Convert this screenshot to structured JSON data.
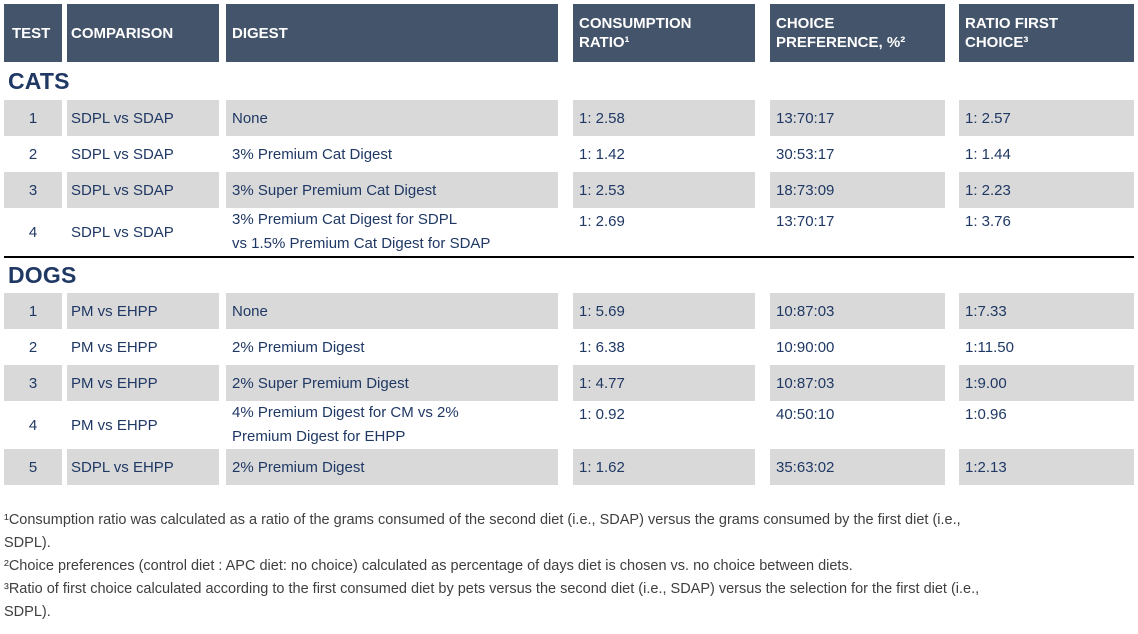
{
  "colors": {
    "header_bg": "#44546A",
    "row_alt_bg": "#D9D9D9",
    "navy": "#1F3864",
    "footnote": "#3F3F3F",
    "divider": "#000000"
  },
  "table": {
    "columns": {
      "test": "TEST",
      "comparison": "COMPARISON",
      "digest": "DIGEST",
      "consumption_ratio": "CONSUMPTION\nRATIO¹",
      "choice_preference": "CHOICE\nPREFERENCE, %²",
      "ratio_first_choice": "RATIO FIRST\nCHOICE³"
    },
    "sections": [
      {
        "title": "CATS",
        "rows": [
          {
            "test": "1",
            "comparison": "SDPL vs SDAP",
            "digest": "None",
            "consumption_ratio": "1: 2.58",
            "choice_preference": "13:70:17",
            "ratio_first_choice": "1: 2.57"
          },
          {
            "test": "2",
            "comparison": "SDPL vs SDAP",
            "digest": "3% Premium Cat Digest",
            "consumption_ratio": "1: 1.42",
            "choice_preference": "30:53:17",
            "ratio_first_choice": "1: 1.44"
          },
          {
            "test": "3",
            "comparison": "SDPL vs SDAP",
            "digest": "3% Super Premium Cat Digest",
            "consumption_ratio": "1: 2.53",
            "choice_preference": "18:73:09",
            "ratio_first_choice": "1: 2.23"
          },
          {
            "test": "4",
            "comparison": "SDPL vs SDAP",
            "digest": "3% Premium Cat Digest for SDPL\nvs 1.5% Premium Cat Digest for SDAP",
            "consumption_ratio": "1: 2.69",
            "choice_preference": "13:70:17",
            "ratio_first_choice": "1: 3.76"
          }
        ]
      },
      {
        "title": "DOGS",
        "rows": [
          {
            "test": "1",
            "comparison": "PM vs EHPP",
            "digest": "None",
            "consumption_ratio": "1: 5.69",
            "choice_preference": "10:87:03",
            "ratio_first_choice": "1:7.33"
          },
          {
            "test": "2",
            "comparison": "PM vs EHPP",
            "digest": "2% Premium Digest",
            "consumption_ratio": "1: 6.38",
            "choice_preference": "10:90:00",
            "ratio_first_choice": "1:11.50"
          },
          {
            "test": "3",
            "comparison": "PM vs EHPP",
            "digest": "2% Super Premium Digest",
            "consumption_ratio": "1: 4.77",
            "choice_preference": "10:87:03",
            "ratio_first_choice": "1:9.00"
          },
          {
            "test": "4",
            "comparison": "PM vs EHPP",
            "digest": "4% Premium Digest for CM vs 2%\nPremium Digest for EHPP",
            "consumption_ratio": "1: 0.92",
            "choice_preference": "40:50:10",
            "ratio_first_choice": "1:0.96"
          },
          {
            "test": "5",
            "comparison": "SDPL vs EHPP",
            "digest": "2% Premium Digest",
            "consumption_ratio": "1: 1.62",
            "choice_preference": "35:63:02",
            "ratio_first_choice": "1:2.13"
          }
        ]
      }
    ]
  },
  "footnotes": [
    "¹Consumption ratio was calculated as a ratio of the grams consumed of the second diet (i.e., SDAP) versus the grams consumed by the first diet (i.e.,\nSDPL).",
    "²Choice preferences (control diet : APC diet: no choice) calculated as percentage of days diet is chosen vs. no choice between diets.",
    "³Ratio of first choice calculated according to the first consumed diet by pets versus the second diet (i.e., SDAP) versus the selection for the first diet (i.e.,\nSDPL)."
  ]
}
